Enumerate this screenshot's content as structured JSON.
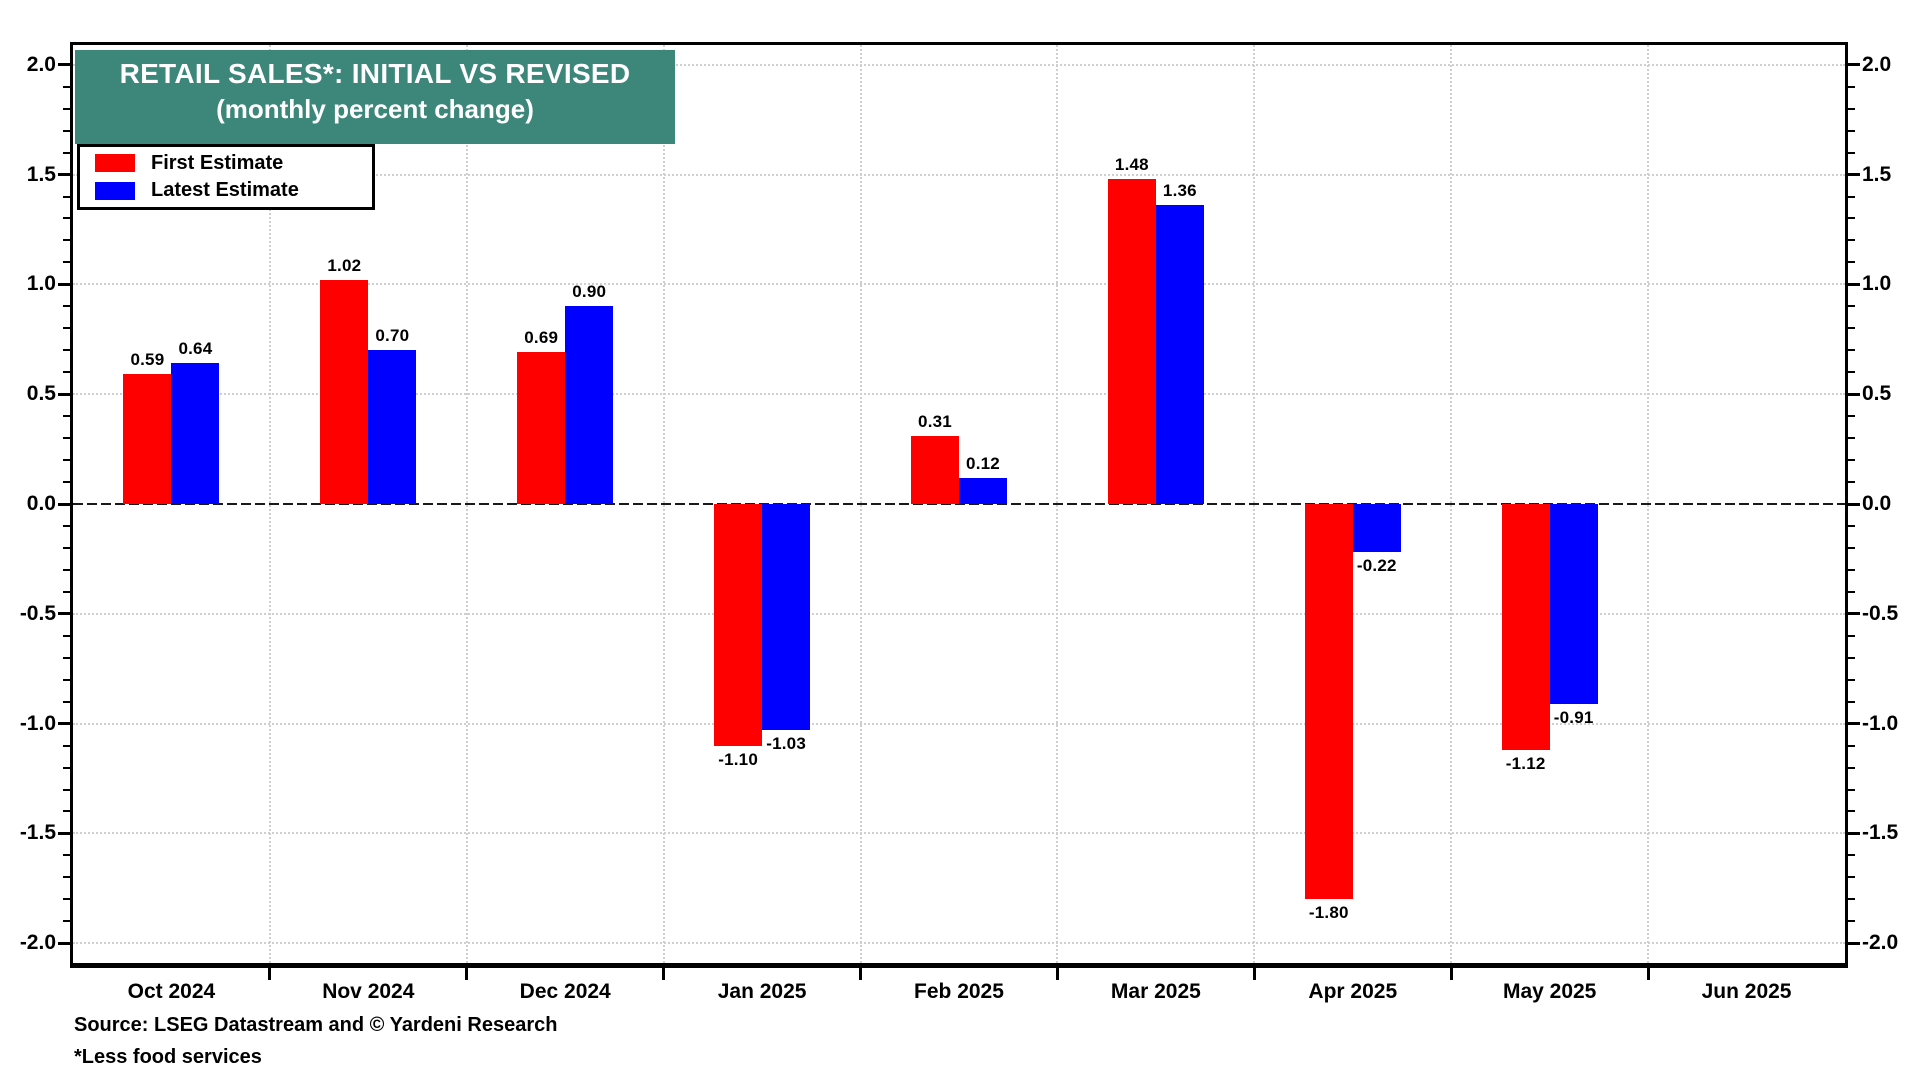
{
  "title": {
    "line1": "RETAIL SALES*: INITIAL VS REVISED",
    "line2": "(monthly percent change)"
  },
  "legend": {
    "items": [
      {
        "label": "First Estimate",
        "color": "#ff0000"
      },
      {
        "label": "Latest Estimate",
        "color": "#0000ff"
      }
    ]
  },
  "footer": {
    "source": "Source: LSEG Datastream and © Yardeni Research",
    "footnote": "*Less food services"
  },
  "colors": {
    "title_bg": "#3C867A",
    "title_text": "#ffffff",
    "first_estimate": "#ff0000",
    "latest_estimate": "#0000ff",
    "grid": "#cfcfcf",
    "axis": "#000000"
  },
  "chart_data": {
    "type": "bar",
    "title": "RETAIL SALES*: INITIAL VS REVISED",
    "subtitle": "(monthly percent change)",
    "categories": [
      "Oct 2024",
      "Nov 2024",
      "Dec 2024",
      "Jan 2025",
      "Feb 2025",
      "Mar 2025",
      "Apr 2025",
      "May 2025",
      "Jun 2025"
    ],
    "series": [
      {
        "name": "First Estimate",
        "color": "#ff0000",
        "values": [
          0.59,
          1.02,
          0.69,
          -1.1,
          0.31,
          1.48,
          -1.8,
          -1.12,
          null
        ]
      },
      {
        "name": "Latest Estimate",
        "color": "#0000ff",
        "values": [
          0.64,
          0.7,
          0.9,
          -1.03,
          0.12,
          1.36,
          -0.22,
          -0.91,
          null
        ]
      }
    ],
    "ylabel": "",
    "xlabel": "",
    "ylim": [
      -2.09,
      2.09
    ],
    "y_major_ticks": [
      2.0,
      1.5,
      1.0,
      0.5,
      0.0,
      -0.5,
      -1.0,
      -1.5,
      -2.0
    ],
    "y_minor_step": 0.1,
    "grid": true,
    "legend_position": "top-left",
    "axis_label_sides": "both",
    "value_labels": true,
    "value_label_decimals": 2
  }
}
